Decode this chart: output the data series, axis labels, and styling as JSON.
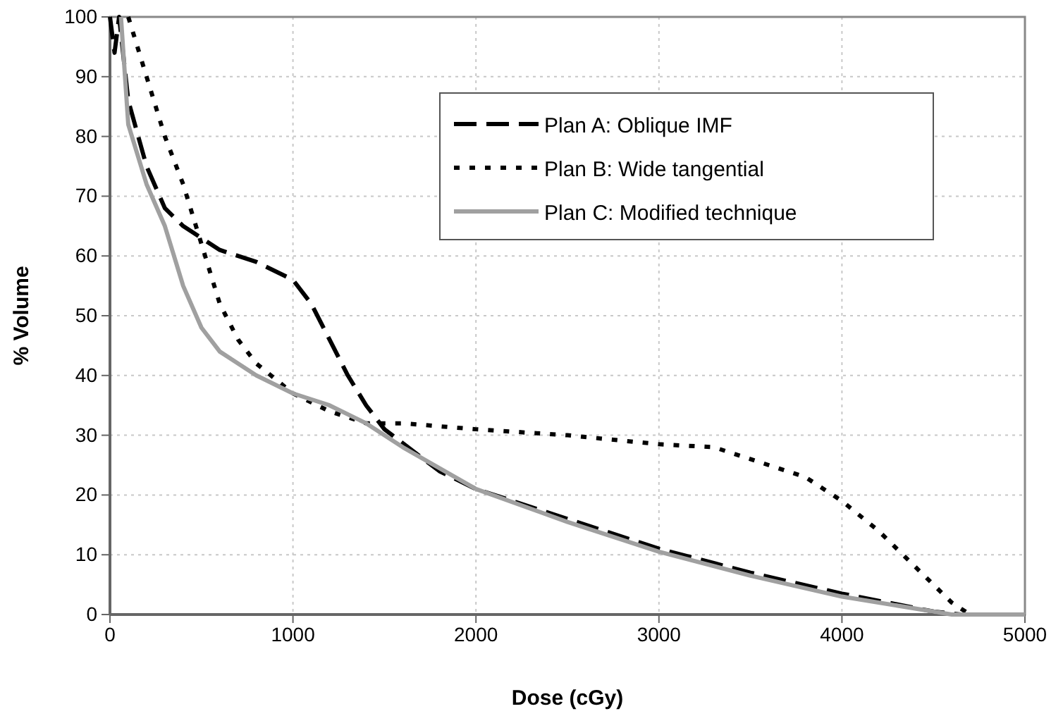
{
  "chart_data": {
    "type": "line",
    "xlabel": "Dose (cGy)",
    "ylabel": "% Volume",
    "xlim": [
      0,
      5000
    ],
    "ylim": [
      0,
      100
    ],
    "xticks": [
      0,
      1000,
      2000,
      3000,
      4000,
      5000
    ],
    "yticks": [
      0,
      10,
      20,
      30,
      40,
      50,
      60,
      70,
      80,
      90,
      100
    ],
    "grid": true,
    "legend": "top right",
    "series": [
      {
        "name": "Plan A: Oblique IMF",
        "color": "#000000",
        "line_style": "dashed",
        "x": [
          0,
          25,
          50,
          100,
          200,
          300,
          400,
          600,
          800,
          1000,
          1100,
          1200,
          1300,
          1400,
          1500,
          1800,
          2000,
          2500,
          3000,
          3500,
          4000,
          4500,
          4650,
          5000
        ],
        "values": [
          100,
          94,
          100,
          86,
          75,
          68,
          65,
          61,
          59,
          56,
          52,
          46,
          40,
          35,
          31,
          24,
          21,
          16,
          11,
          7,
          3.5,
          0.5,
          0,
          0
        ]
      },
      {
        "name": "Plan B: Wide tangential",
        "color": "#000000",
        "line_style": "dotted",
        "x": [
          100,
          200,
          300,
          400,
          500,
          600,
          700,
          800,
          1000,
          1200,
          1400,
          1600,
          2000,
          2500,
          3000,
          3300,
          3600,
          3800,
          4000,
          4200,
          4400,
          4600,
          4700,
          5000
        ],
        "values": [
          100,
          90,
          80,
          72,
          62,
          52,
          46,
          42,
          37,
          34,
          32,
          32,
          31,
          30,
          28.5,
          28,
          25,
          23,
          19,
          14,
          8,
          2,
          0,
          0
        ]
      },
      {
        "name": "Plan C: Modified technique",
        "color": "#a0a0a0",
        "line_style": "solid",
        "x": [
          60,
          100,
          200,
          300,
          400,
          500,
          600,
          800,
          1000,
          1200,
          1400,
          1600,
          2000,
          2500,
          3000,
          3500,
          4000,
          4500,
          4600,
          5000
        ],
        "values": [
          100,
          82,
          72,
          65,
          55,
          48,
          44,
          40,
          37,
          35,
          32,
          28,
          21,
          15.5,
          10.5,
          6.5,
          3,
          0.5,
          0,
          0
        ]
      }
    ]
  }
}
